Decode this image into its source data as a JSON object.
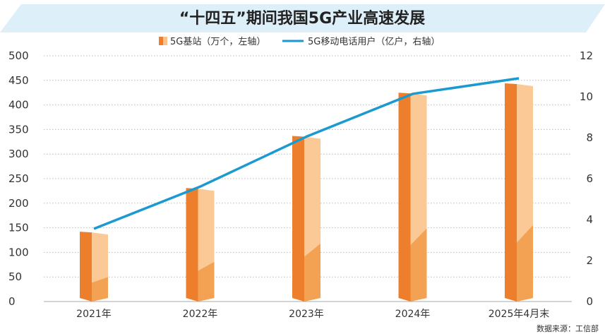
{
  "chart_data": {
    "type": "bar",
    "title": "“十四五”期间我国5G产业高速发展",
    "categories": [
      "2021年",
      "2022年",
      "2023年",
      "2024年",
      "2025年4月末"
    ],
    "series": [
      {
        "name": "5G基站（万个，左轴）",
        "kind": "bar",
        "axis": "left",
        "values": [
          142,
          231,
          337,
          425,
          444
        ],
        "color": "#ED7F2C"
      },
      {
        "name": "5G移动电话用户（亿户，右轴）",
        "kind": "line",
        "axis": "right",
        "values": [
          3.55,
          5.61,
          8.05,
          10.14,
          10.9
        ],
        "color": "#1A9AD0"
      }
    ],
    "left_axis": {
      "ylim": [
        0,
        500
      ],
      "ticks": [
        "0",
        "50",
        "100",
        "150",
        "200",
        "250",
        "300",
        "350",
        "400",
        "450",
        "500"
      ]
    },
    "right_axis": {
      "ylim": [
        0,
        12
      ],
      "ticks": [
        "0",
        "2",
        "4",
        "6",
        "8",
        "10",
        "12"
      ]
    },
    "grid": true,
    "legend_placement": "top-center",
    "source": "数据来源：工信部"
  }
}
